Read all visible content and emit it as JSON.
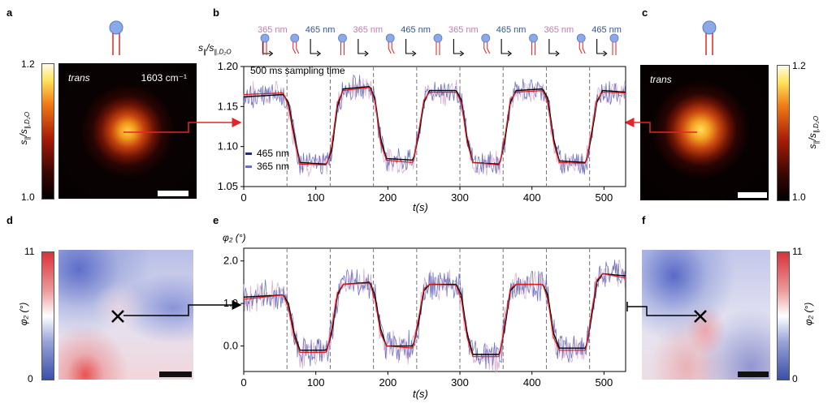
{
  "panels": {
    "a": {
      "letter": "a",
      "image_label": "trans",
      "wavenumber_label": "1603 cm⁻¹",
      "colorbar": {
        "max": "1.2",
        "min": "1.0",
        "label": "s",
        "label_sub": "∥",
        "label_mid": "/s",
        "label_sub2": "∥,D₂O"
      }
    },
    "b": {
      "letter": "b",
      "annotation": "500 ms sampling time",
      "legend": [
        {
          "label": "465 nm",
          "color": "#23306e"
        },
        {
          "label": "365 nm",
          "color": "#6a6fbf"
        }
      ],
      "wavelength_sequence": [
        "365 nm",
        "465 nm",
        "365 nm",
        "465 nm",
        "365 nm",
        "465 nm",
        "365 nm",
        "465 nm"
      ],
      "wavelength_colors": {
        "365 nm": "#c47ab5",
        "465 nm": "#2c56a8"
      },
      "y_axis_label": {
        "main": "s",
        "sub": "∥",
        "mid": "/s",
        "sub2": "∥,D₂O"
      },
      "x_axis_label": "t(s)"
    },
    "c": {
      "letter": "c",
      "image_label": "trans",
      "colorbar": {
        "max": "1.2",
        "min": "1.0"
      }
    },
    "d": {
      "letter": "d",
      "colorbar": {
        "max": "11",
        "min": "0",
        "label": "φ₂ (°)"
      }
    },
    "e": {
      "letter": "e",
      "y_axis_label": "φ₂ (°)",
      "x_axis_label": "t(s)"
    },
    "f": {
      "letter": "f",
      "colorbar": {
        "max": "11",
        "min": "0",
        "label": "φ₂ (°)"
      }
    }
  },
  "chart_data": [
    {
      "type": "line",
      "panel": "b",
      "xlim": [
        0,
        530
      ],
      "ylim": [
        1.05,
        1.2
      ],
      "x_ticks": [
        0,
        100,
        200,
        300,
        400,
        500
      ],
      "y_ticks": [
        "1.05",
        "1.10",
        "1.15",
        "1.20"
      ],
      "switch_times": [
        60,
        120,
        180,
        240,
        300,
        360,
        420,
        480
      ],
      "series": [
        {
          "name": "465 nm",
          "color": "#23306e",
          "x": [
            0,
            55,
            62,
            70,
            78,
            115,
            122,
            130,
            138,
            175,
            182,
            190,
            198,
            235,
            242,
            250,
            258,
            295,
            302,
            310,
            318,
            355,
            362,
            370,
            378,
            415,
            422,
            430,
            438,
            475,
            482,
            490,
            498,
            530
          ],
          "y": [
            1.162,
            1.165,
            1.155,
            1.115,
            1.08,
            1.078,
            1.095,
            1.15,
            1.172,
            1.175,
            1.16,
            1.11,
            1.085,
            1.083,
            1.11,
            1.155,
            1.17,
            1.17,
            1.158,
            1.11,
            1.08,
            1.078,
            1.105,
            1.155,
            1.17,
            1.172,
            1.16,
            1.11,
            1.082,
            1.08,
            1.11,
            1.155,
            1.17,
            1.168
          ]
        },
        {
          "name": "365 nm",
          "color": "#d7a0c8",
          "x": [
            0,
            55,
            62,
            70,
            78,
            115,
            122,
            130,
            138,
            175,
            182,
            190,
            198,
            235,
            242,
            250,
            258,
            295,
            302,
            310,
            318,
            355,
            362,
            370,
            378,
            415,
            422,
            430,
            438,
            475,
            482,
            490,
            498,
            530
          ],
          "y": [
            1.165,
            1.167,
            1.15,
            1.11,
            1.078,
            1.077,
            1.1,
            1.155,
            1.17,
            1.174,
            1.157,
            1.105,
            1.083,
            1.08,
            1.115,
            1.158,
            1.168,
            1.168,
            1.155,
            1.105,
            1.08,
            1.077,
            1.11,
            1.158,
            1.168,
            1.17,
            1.155,
            1.105,
            1.08,
            1.079,
            1.115,
            1.158,
            1.168,
            1.167
          ]
        }
      ],
      "fit_line_color": "#e31a1c"
    },
    {
      "type": "line",
      "panel": "e",
      "xlim": [
        0,
        530
      ],
      "ylim": [
        -0.6,
        2.3
      ],
      "x_ticks": [
        0,
        100,
        200,
        300,
        400,
        500
      ],
      "y_ticks": [
        "0.0",
        "1.0",
        "2.0"
      ],
      "switch_times": [
        60,
        120,
        180,
        240,
        300,
        360,
        420,
        480
      ],
      "series": [
        {
          "name": "465 nm",
          "color": "#23306e",
          "x": [
            0,
            55,
            62,
            70,
            78,
            115,
            122,
            130,
            138,
            175,
            182,
            190,
            198,
            235,
            242,
            250,
            258,
            295,
            302,
            310,
            318,
            355,
            362,
            370,
            378,
            415,
            422,
            430,
            438,
            475,
            482,
            490,
            498,
            530
          ],
          "y": [
            1.15,
            1.2,
            1.0,
            0.3,
            -0.1,
            -0.1,
            0.3,
            1.2,
            1.45,
            1.5,
            1.2,
            0.4,
            0.0,
            0.0,
            0.5,
            1.3,
            1.45,
            1.45,
            1.2,
            0.3,
            -0.2,
            -0.2,
            0.4,
            1.3,
            1.45,
            1.45,
            1.2,
            0.3,
            -0.05,
            -0.05,
            0.6,
            1.5,
            1.7,
            1.65
          ]
        },
        {
          "name": "365 nm",
          "color": "#d7a0c8",
          "x": [
            0,
            55,
            62,
            70,
            78,
            115,
            122,
            130,
            138,
            175,
            182,
            190,
            198,
            235,
            242,
            250,
            258,
            295,
            302,
            310,
            318,
            355,
            362,
            370,
            378,
            415,
            422,
            430,
            438,
            475,
            482,
            490,
            498,
            530
          ],
          "y": [
            1.1,
            1.2,
            0.9,
            0.2,
            -0.15,
            -0.15,
            0.4,
            1.25,
            1.45,
            1.48,
            1.1,
            0.3,
            0.0,
            -0.05,
            0.6,
            1.35,
            1.45,
            1.43,
            1.1,
            0.2,
            -0.25,
            -0.25,
            0.5,
            1.35,
            1.45,
            1.45,
            1.1,
            0.2,
            -0.1,
            -0.1,
            0.7,
            1.55,
            1.7,
            1.6
          ]
        }
      ],
      "fit_line_color": "#e31a1c"
    }
  ]
}
